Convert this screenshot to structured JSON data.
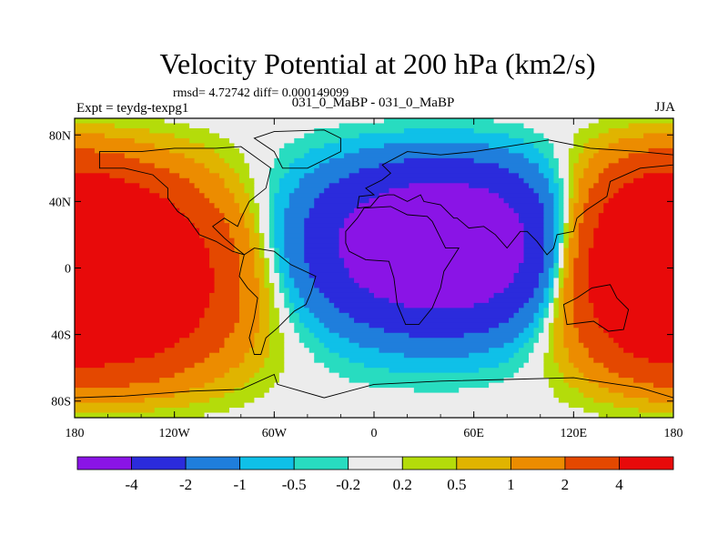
{
  "chart_data": {
    "type": "contour-map",
    "title": "Velocity Potential at 200 hPa (km2/s)",
    "stats": "rmsd= 4.72742 diff= 0.000149099",
    "left_label": "Expt = teydg-texpg1",
    "center_label": "031_0_MaBP - 031_0_MaBP",
    "right_label": "JJA",
    "x_ticks": [
      {
        "value": -180,
        "label": "180"
      },
      {
        "value": -120,
        "label": "120W"
      },
      {
        "value": -60,
        "label": "60W"
      },
      {
        "value": 0,
        "label": "0"
      },
      {
        "value": 60,
        "label": "60E"
      },
      {
        "value": 120,
        "label": "120E"
      },
      {
        "value": 180,
        "label": "180"
      }
    ],
    "y_ticks": [
      {
        "value": 80,
        "label": "80N"
      },
      {
        "value": 40,
        "label": "40N"
      },
      {
        "value": 0,
        "label": "0"
      },
      {
        "value": -40,
        "label": "40S"
      },
      {
        "value": -80,
        "label": "80S"
      }
    ],
    "xlim": [
      -180,
      180
    ],
    "ylim": [
      -90,
      90
    ],
    "colorbar": {
      "levels": [
        "-4",
        "-2",
        "-1",
        "-0.5",
        "-0.2",
        "0.2",
        "0.5",
        "1",
        "2",
        "4"
      ],
      "colors": [
        "#8a14e6",
        "#2b2bdc",
        "#1f7edc",
        "#0fc0e8",
        "#28dcc0",
        "#ececec",
        "#b4dc0a",
        "#e0b400",
        "#ec8c00",
        "#e44800",
        "#e80a0a"
      ]
    },
    "field_pattern": "dipole: minimum near 40E 20N (below -4); maxima near 150W 10S and 160E 10N (above 4)"
  }
}
